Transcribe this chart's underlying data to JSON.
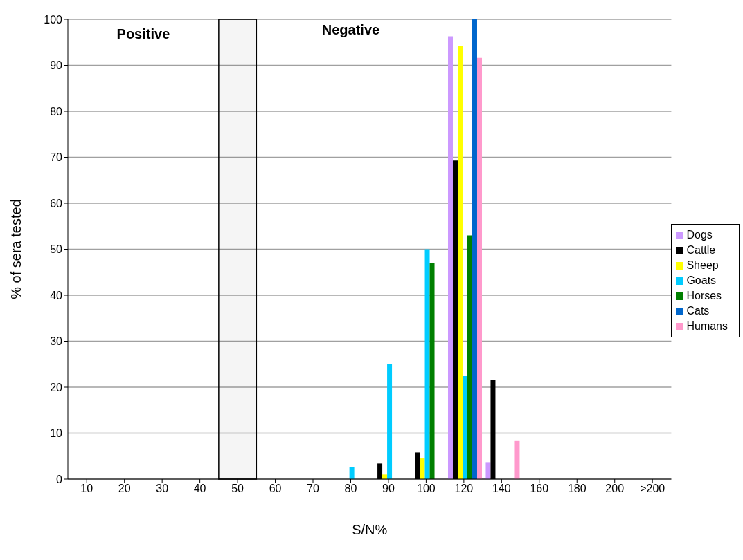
{
  "chart_data": {
    "type": "bar",
    "xlabel": "S/N%",
    "ylabel": "% of sera tested",
    "categories": [
      "10",
      "20",
      "30",
      "40",
      "50",
      "60",
      "70",
      "80",
      "90",
      "100",
      "120",
      "140",
      "160",
      "180",
      "200",
      ">200"
    ],
    "series": [
      {
        "name": "Dogs",
        "color": "#cc99ff",
        "values": [
          null,
          null,
          null,
          null,
          null,
          null,
          null,
          null,
          null,
          null,
          96.3,
          3.7,
          null,
          null,
          null,
          null
        ]
      },
      {
        "name": "Cattle",
        "color": "#000000",
        "values": [
          null,
          null,
          null,
          null,
          null,
          null,
          null,
          null,
          3.4,
          5.8,
          69.3,
          21.6,
          null,
          null,
          null,
          null
        ]
      },
      {
        "name": "Sheep",
        "color": "#ffff00",
        "values": [
          null,
          null,
          null,
          null,
          null,
          null,
          null,
          null,
          1,
          4.5,
          94.3,
          null,
          null,
          null,
          null,
          null
        ]
      },
      {
        "name": "Goats",
        "color": "#00ccff",
        "values": [
          null,
          null,
          null,
          null,
          null,
          null,
          null,
          2.7,
          25,
          50,
          22.4,
          null,
          null,
          null,
          null,
          null
        ]
      },
      {
        "name": "Horses",
        "color": "#008000",
        "values": [
          null,
          null,
          null,
          null,
          null,
          null,
          null,
          null,
          null,
          47,
          53,
          null,
          null,
          null,
          null,
          null
        ]
      },
      {
        "name": "Cats",
        "color": "#0066cc",
        "values": [
          null,
          null,
          null,
          null,
          null,
          null,
          null,
          null,
          null,
          null,
          100,
          null,
          null,
          null,
          null,
          null
        ]
      },
      {
        "name": "Humans",
        "color": "#ff99cc",
        "values": [
          null,
          null,
          null,
          null,
          null,
          null,
          null,
          null,
          null,
          null,
          91.6,
          8.3,
          null,
          null,
          null,
          null
        ]
      }
    ],
    "ylim": [
      0,
      100
    ],
    "yticks": [
      0,
      10,
      20,
      30,
      40,
      50,
      60,
      70,
      80,
      90,
      100
    ],
    "grid": "y",
    "legend": "right",
    "bands": [
      {
        "axis": "x",
        "from": "50",
        "to": "50",
        "color": "#000000"
      }
    ],
    "annotations": [
      "Positive",
      "Negative"
    ]
  }
}
